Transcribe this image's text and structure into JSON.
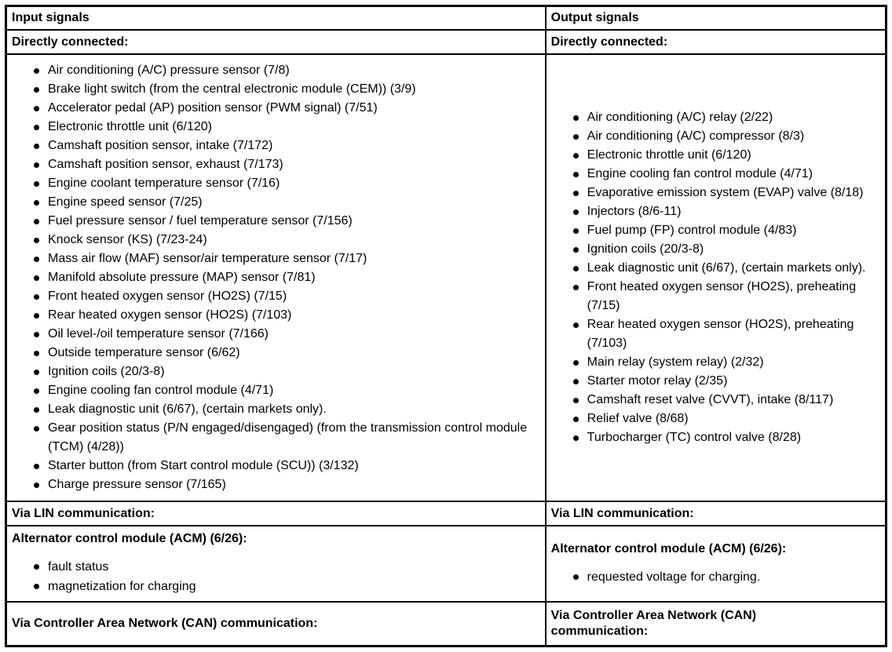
{
  "table": {
    "colors": {
      "border": "#000000",
      "background": "#ffffff",
      "text": "#000000"
    },
    "input": {
      "header": "Input signals",
      "directly_connected": {
        "label": "Directly connected:",
        "items": [
          "Air conditioning (A/C) pressure sensor (7/8)",
          "Brake light switch (from the central electronic module (CEM)) (3/9)",
          "Accelerator pedal (AP) position sensor (PWM signal) (7/51)",
          "Electronic throttle unit (6/120)",
          "Camshaft position sensor, intake (7/172)",
          "Camshaft position sensor, exhaust (7/173)",
          "Engine coolant temperature sensor (7/16)",
          "Engine speed sensor (7/25)",
          "Fuel pressure sensor / fuel temperature sensor (7/156)",
          "Knock sensor (KS) (7/23-24)",
          "Mass air flow (MAF) sensor/air temperature sensor (7/17)",
          "Manifold absolute pressure (MAP) sensor (7/81)",
          "Front heated oxygen sensor (HO2S) (7/15)",
          "Rear heated oxygen sensor (HO2S) (7/103)",
          "Oil level-/oil temperature sensor (7/166)",
          "Outside temperature sensor (6/62)",
          "Ignition coils (20/3-8)",
          "Engine cooling fan control module (4/71)",
          "Leak diagnostic unit (6/67), (certain markets only).",
          "Gear position status (P/N engaged/disengaged) (from the transmission control module (TCM) (4/28))",
          "Starter button (from Start control module (SCU)) (3/132)",
          "Charge pressure sensor (7/165)"
        ]
      },
      "via_lin_label": "Via LIN communication:",
      "acm": {
        "label": "Alternator control module (ACM) (6/26):",
        "items": [
          "fault status",
          "magnetization for charging"
        ]
      },
      "via_can_label": "Via Controller Area Network (CAN) communication:"
    },
    "output": {
      "header": "Output signals",
      "directly_connected": {
        "label": "Directly connected:",
        "items": [
          "Air conditioning (A/C) relay (2/22)",
          "Air conditioning (A/C) compressor (8/3)",
          "Electronic throttle unit (6/120)",
          "Engine cooling fan control module (4/71)",
          "Evaporative emission system (EVAP) valve (8/18)",
          "Injectors (8/6-11)",
          "Fuel pump (FP) control module (4/83)",
          "Ignition coils (20/3-8)",
          "Leak diagnostic unit (6/67), (certain markets only).",
          "Front heated oxygen sensor (HO2S), preheating (7/15)",
          "Rear heated oxygen sensor (HO2S), preheating (7/103)",
          "Main relay (system relay) (2/32)",
          "Starter motor relay (2/35)",
          "Camshaft reset valve (CVVT), intake (8/117)",
          "Relief valve (8/68)",
          "Turbocharger (TC) control valve (8/28)"
        ]
      },
      "via_lin_label": "Via LIN communication:",
      "acm": {
        "label": "Alternator control module (ACM) (6/26):",
        "items": [
          "requested voltage for charging."
        ]
      },
      "via_can_label": "Via Controller Area Network (CAN) communication:"
    }
  }
}
